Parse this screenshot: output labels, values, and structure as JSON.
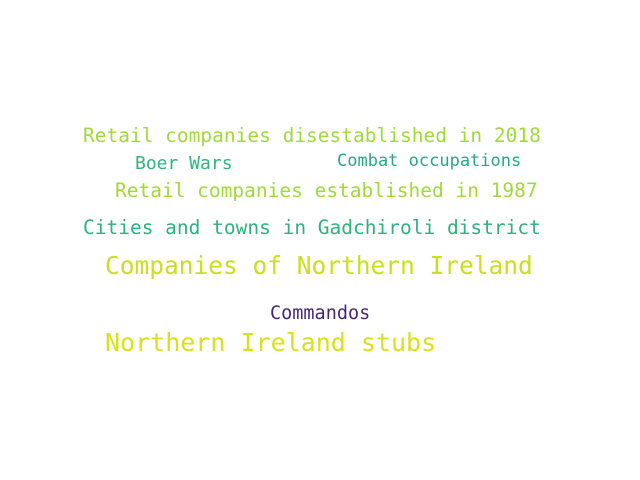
{
  "words": [
    {
      "text": "Retail companies disestablished in 2018",
      "color": "#a0da39"
    },
    {
      "text": "Boer Wars",
      "color": "#2fb47c"
    },
    {
      "text": "Combat occupations",
      "color": "#26a884"
    },
    {
      "text": "Retail companies established in 1987",
      "color": "#a0da39"
    },
    {
      "text": "Cities and towns in Gadchiroli district",
      "color": "#2db27d"
    },
    {
      "text": "Companies of Northern Ireland",
      "color": "#c8e020"
    },
    {
      "text": "Commandos",
      "color": "#482677"
    },
    {
      "text": "Northern Ireland stubs",
      "color": "#d8e219"
    }
  ]
}
